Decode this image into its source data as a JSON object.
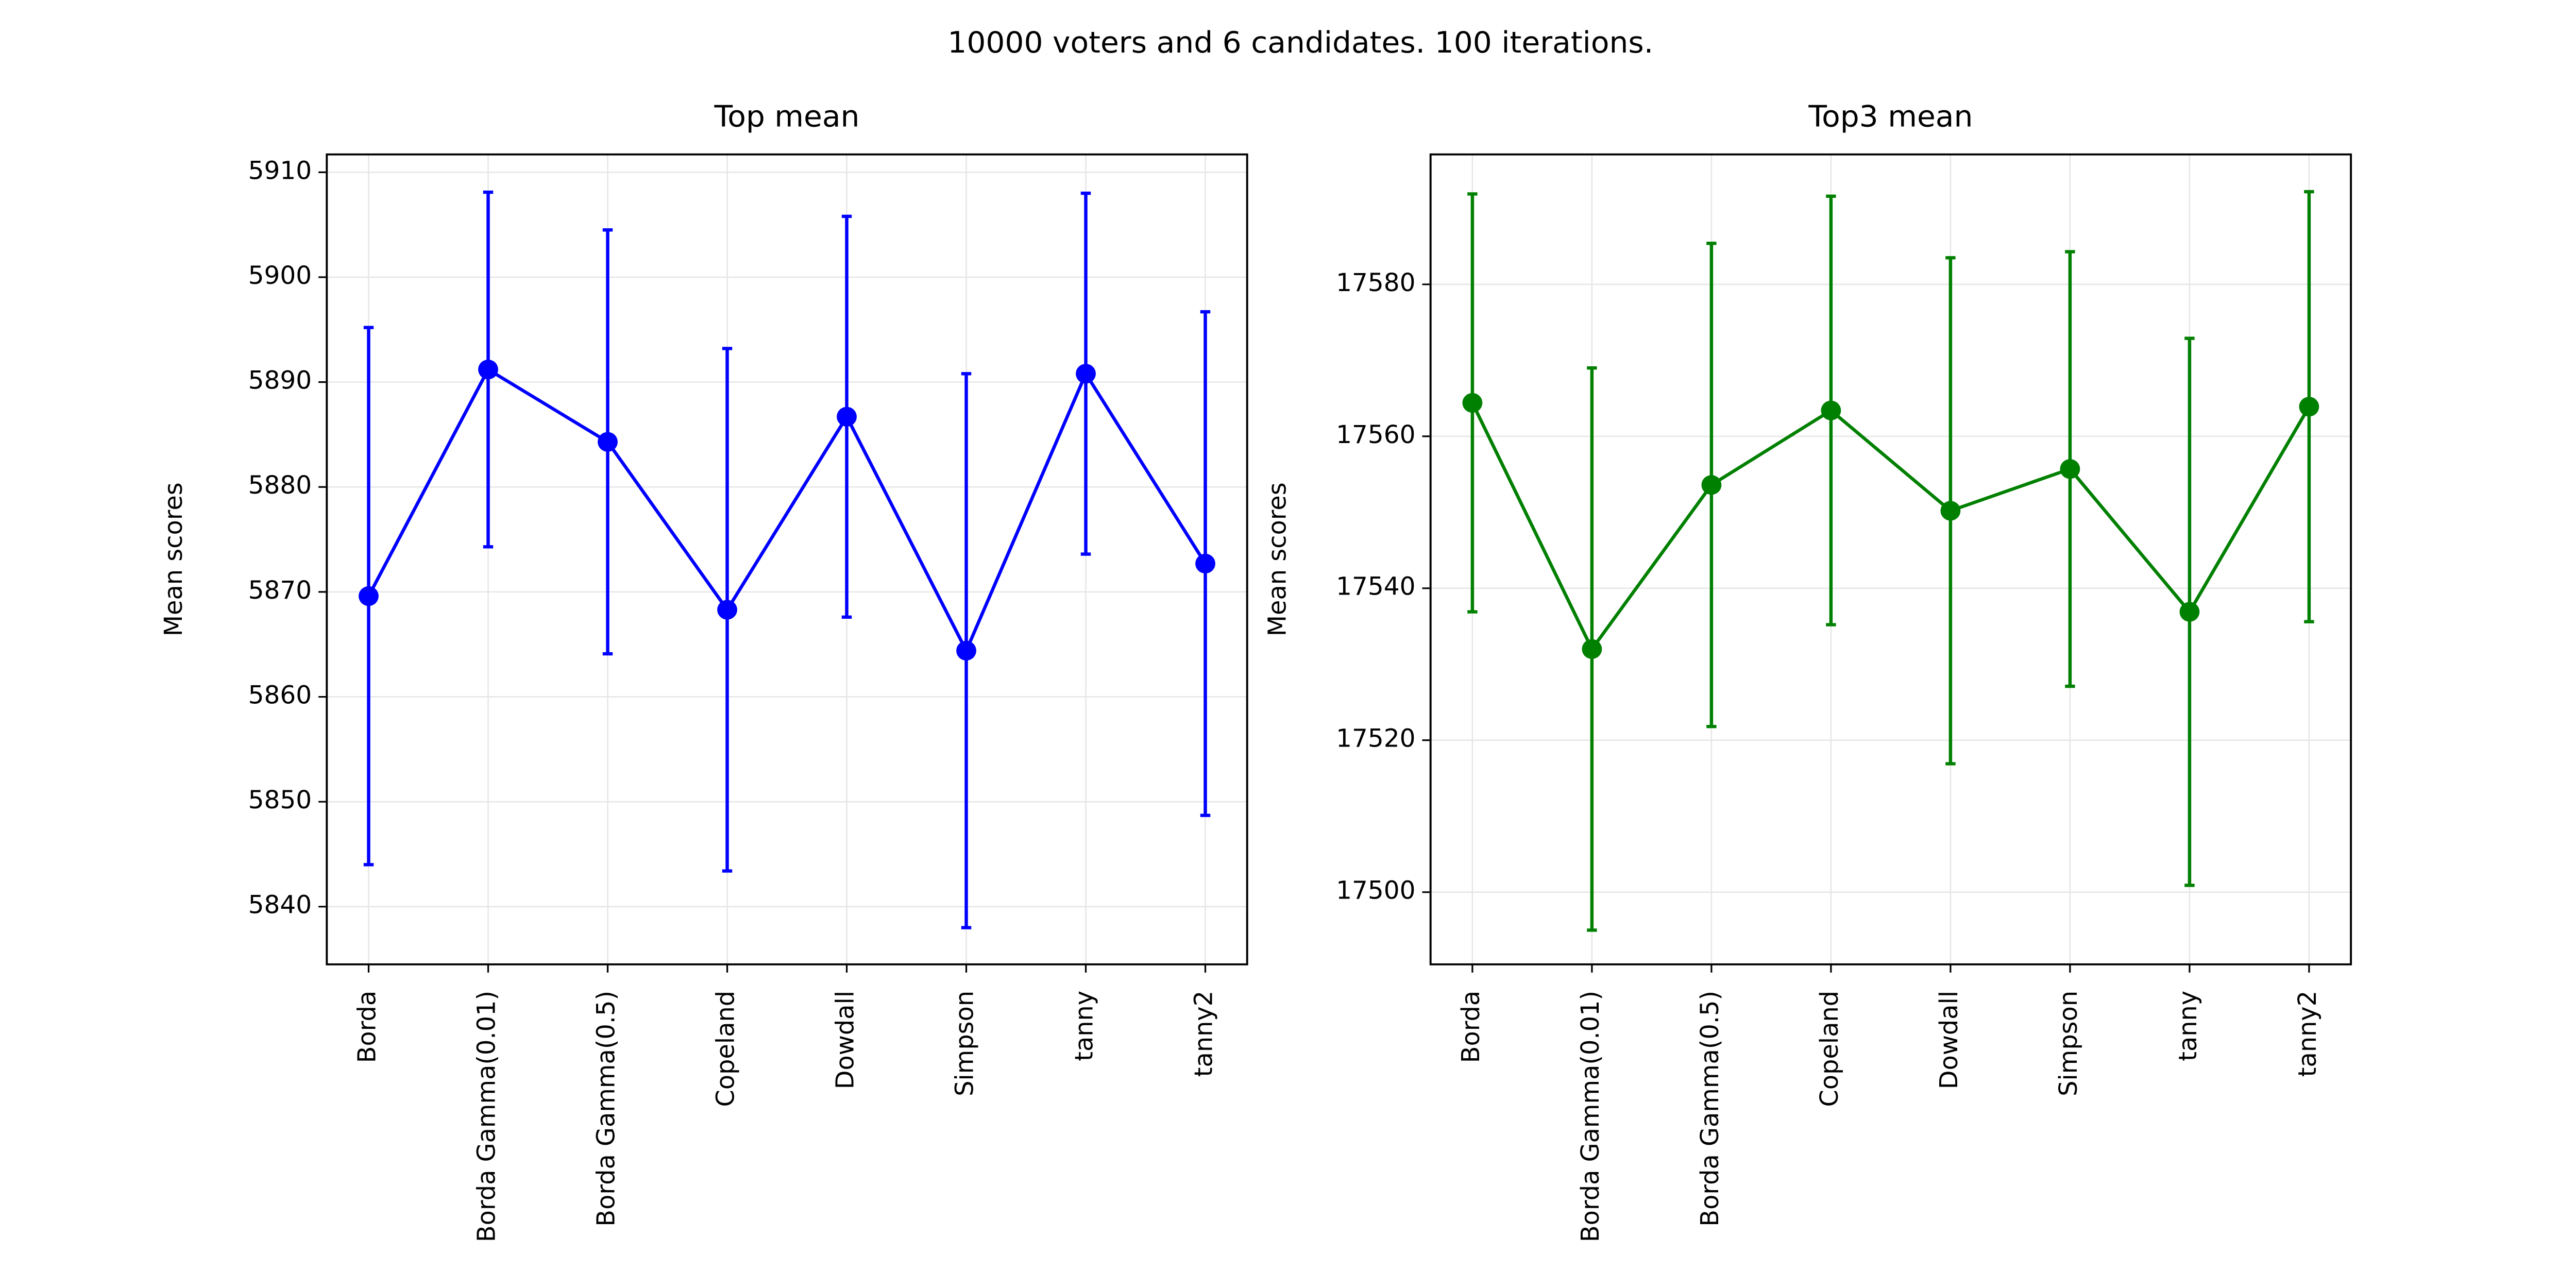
{
  "title": "10000 voters and 6 candidates. 100 iterations.",
  "chart_data": [
    {
      "type": "line",
      "title": "Top mean",
      "y_label": "Mean scores",
      "categories": [
        "Borda",
        "Borda Gamma(0.01)",
        "Borda Gamma(0.5)",
        "Copeland",
        "Dowdall",
        "Simpson",
        "tanny",
        "tanny2"
      ],
      "series": [
        {
          "color": "#0000ff",
          "values": [
            5869.6,
            5891.2,
            5884.3,
            5868.3,
            5886.7,
            5864.4,
            5890.8,
            5872.7
          ],
          "errors": [
            25.6,
            16.9,
            20.2,
            24.9,
            19.1,
            26.4,
            17.2,
            24.0
          ]
        }
      ],
      "ylim": [
        5834.5,
        5911.7
      ],
      "yticks": [
        5840,
        5850,
        5860,
        5870,
        5880,
        5890,
        5900,
        5910
      ],
      "grid": true
    },
    {
      "type": "line",
      "title": "Top3 mean",
      "y_label": "Mean scores",
      "categories": [
        "Borda",
        "Borda Gamma(0.01)",
        "Borda Gamma(0.5)",
        "Copeland",
        "Dowdall",
        "Simpson",
        "tanny",
        "tanny2"
      ],
      "series": [
        {
          "color": "#008000",
          "values": [
            17564.4,
            17532.0,
            17553.6,
            17563.4,
            17550.2,
            17555.7,
            17536.9,
            17563.9
          ],
          "errors": [
            27.5,
            37.0,
            31.8,
            28.2,
            33.3,
            28.6,
            36.0,
            28.3
          ]
        }
      ],
      "ylim": [
        17490.5,
        17597.1
      ],
      "yticks": [
        17500,
        17520,
        17540,
        17560,
        17580
      ],
      "grid": true
    }
  ]
}
